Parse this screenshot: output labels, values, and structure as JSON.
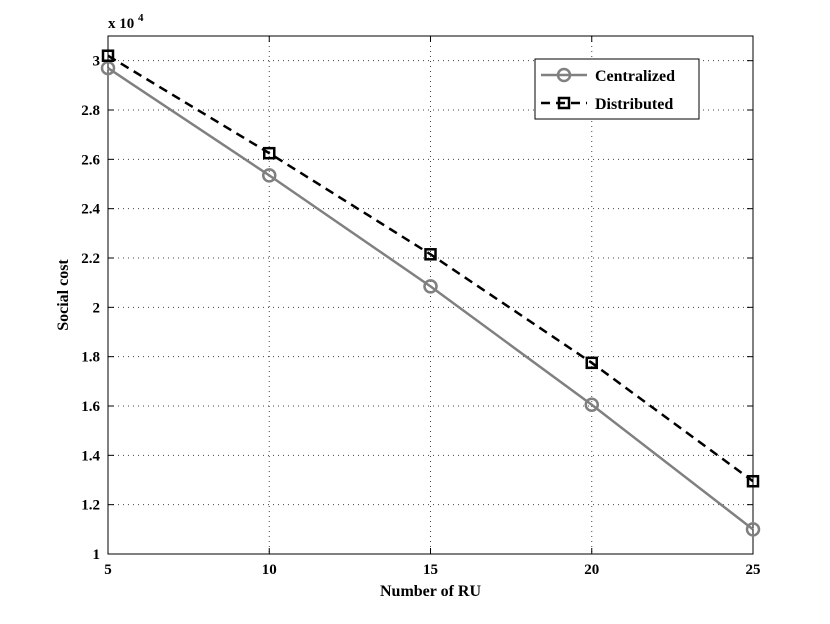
{
  "chart_data": {
    "type": "line",
    "xlabel": "Number of RU",
    "ylabel": "Social cost",
    "exponent_label": {
      "base": "x 10",
      "power": "4"
    },
    "xlim": [
      5,
      25
    ],
    "ylim": [
      1,
      3.1
    ],
    "x_ticks": [
      5,
      10,
      15,
      20,
      25
    ],
    "x_tick_labels": [
      "5",
      "10",
      "15",
      "20",
      "25"
    ],
    "y_ticks": [
      1,
      1.2,
      1.4,
      1.6,
      1.8,
      2,
      2.2,
      2.4,
      2.6,
      2.8,
      3
    ],
    "y_tick_labels": [
      "1",
      "1.2",
      "1.4",
      "1.6",
      "1.8",
      "2",
      "2.2",
      "2.4",
      "2.6",
      "2.8",
      "3"
    ],
    "grid": true,
    "legend_position": "top-right",
    "x": [
      5,
      10,
      15,
      20,
      25
    ],
    "series": [
      {
        "name": "Centralized",
        "values": [
          2.97,
          2.535,
          2.085,
          1.605,
          1.1
        ],
        "color": "#808080",
        "line_style": "solid",
        "marker": "circle"
      },
      {
        "name": "Distributed",
        "values": [
          3.02,
          2.625,
          2.215,
          1.775,
          1.295
        ],
        "color": "#000000",
        "line_style": "dashed",
        "marker": "square"
      }
    ]
  }
}
